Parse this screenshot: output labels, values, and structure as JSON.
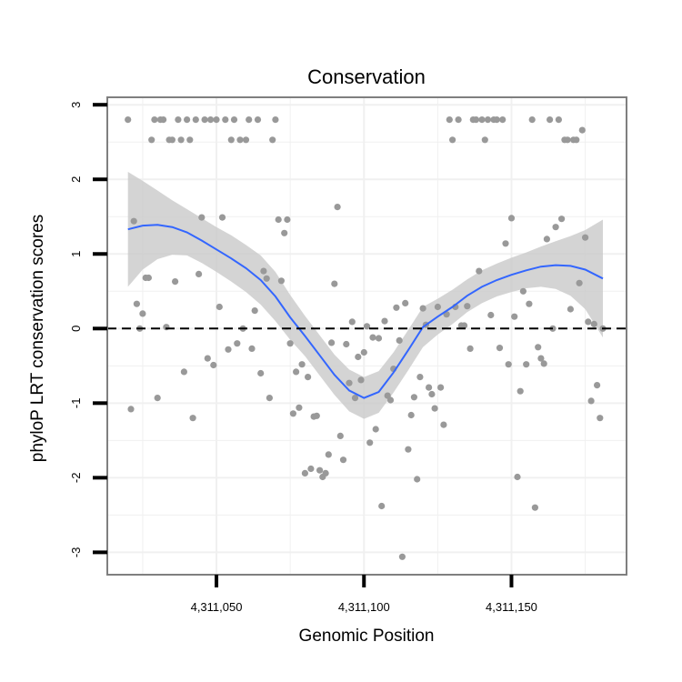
{
  "chart_data": {
    "type": "scatter",
    "title": "Conservation",
    "xlabel": "Genomic Position",
    "ylabel": "phyloP LRT conservation scores",
    "xlim": [
      4311013,
      4311189
    ],
    "ylim": [
      -3.3,
      3.1
    ],
    "x_ticks": [
      4311050,
      4311100,
      4311150
    ],
    "x_tick_labels": [
      "4,311,050",
      "4,311,100",
      "4,311,150"
    ],
    "y_ticks": [
      -3,
      -2,
      -1,
      0,
      1,
      2,
      3
    ],
    "y_tick_labels": [
      "-3",
      "-2",
      "-1",
      "0",
      "1",
      "2",
      "3"
    ],
    "reference_line": {
      "y": 0,
      "style": "dashed"
    },
    "grid": true,
    "colors": {
      "points": "#999999",
      "smooth_line": "#3366ff",
      "confidence_band": "#c9c9c9",
      "grid": "#f0f0f0",
      "panel_border": "#7f7f7f"
    },
    "series": [
      {
        "name": "phyloP scores",
        "points": [
          [
            4311020,
            2.8
          ],
          [
            4311021,
            -1.08
          ],
          [
            4311022,
            1.44
          ],
          [
            4311023,
            0.33
          ],
          [
            4311024,
            0.0
          ],
          [
            4311025,
            0.2
          ],
          [
            4311026,
            0.68
          ],
          [
            4311027,
            0.68
          ],
          [
            4311028,
            2.53
          ],
          [
            4311029,
            2.8
          ],
          [
            4311030,
            -0.93
          ],
          [
            4311031,
            2.8
          ],
          [
            4311032,
            2.8
          ],
          [
            4311033,
            0.02
          ],
          [
            4311034,
            2.53
          ],
          [
            4311035,
            2.53
          ],
          [
            4311036,
            0.63
          ],
          [
            4311037,
            2.8
          ],
          [
            4311038,
            2.53
          ],
          [
            4311039,
            -0.58
          ],
          [
            4311040,
            2.8
          ],
          [
            4311041,
            2.53
          ],
          [
            4311042,
            -1.2
          ],
          [
            4311043,
            2.8
          ],
          [
            4311044,
            0.73
          ],
          [
            4311045,
            1.49
          ],
          [
            4311046,
            2.8
          ],
          [
            4311047,
            -0.4
          ],
          [
            4311048,
            2.8
          ],
          [
            4311049,
            -0.49
          ],
          [
            4311050,
            2.8
          ],
          [
            4311051,
            0.29
          ],
          [
            4311052,
            1.49
          ],
          [
            4311053,
            2.8
          ],
          [
            4311054,
            -0.28
          ],
          [
            4311055,
            2.53
          ],
          [
            4311056,
            2.8
          ],
          [
            4311057,
            -0.2
          ],
          [
            4311058,
            2.53
          ],
          [
            4311059,
            0.0
          ],
          [
            4311060,
            2.53
          ],
          [
            4311061,
            2.8
          ],
          [
            4311062,
            -0.27
          ],
          [
            4311063,
            0.24
          ],
          [
            4311064,
            2.8
          ],
          [
            4311065,
            -0.6
          ],
          [
            4311066,
            0.77
          ],
          [
            4311067,
            0.67
          ],
          [
            4311068,
            -0.93
          ],
          [
            4311069,
            2.53
          ],
          [
            4311070,
            2.8
          ],
          [
            4311071,
            1.46
          ],
          [
            4311072,
            0.64
          ],
          [
            4311073,
            1.28
          ],
          [
            4311074,
            1.46
          ],
          [
            4311075,
            -0.2
          ],
          [
            4311076,
            -1.14
          ],
          [
            4311077,
            -0.58
          ],
          [
            4311078,
            -1.06
          ],
          [
            4311079,
            -0.48
          ],
          [
            4311080,
            -1.94
          ],
          [
            4311081,
            -0.65
          ],
          [
            4311082,
            -1.88
          ],
          [
            4311083,
            -1.18
          ],
          [
            4311084,
            -1.17
          ],
          [
            4311085,
            -1.9
          ],
          [
            4311086,
            -1.99
          ],
          [
            4311087,
            -1.94
          ],
          [
            4311088,
            -1.69
          ],
          [
            4311089,
            -0.19
          ],
          [
            4311090,
            0.6
          ],
          [
            4311091,
            1.63
          ],
          [
            4311092,
            -1.44
          ],
          [
            4311093,
            -1.76
          ],
          [
            4311094,
            -0.21
          ],
          [
            4311095,
            -0.73
          ],
          [
            4311096,
            0.09
          ],
          [
            4311097,
            -0.93
          ],
          [
            4311098,
            -0.38
          ],
          [
            4311099,
            -0.69
          ],
          [
            4311100,
            -0.32
          ],
          [
            4311101,
            0.03
          ],
          [
            4311102,
            -1.53
          ],
          [
            4311103,
            -0.12
          ],
          [
            4311104,
            -1.35
          ],
          [
            4311105,
            -0.13
          ],
          [
            4311106,
            -2.38
          ],
          [
            4311107,
            0.1
          ],
          [
            4311108,
            -0.9
          ],
          [
            4311109,
            -0.96
          ],
          [
            4311110,
            -0.54
          ],
          [
            4311111,
            0.28
          ],
          [
            4311112,
            -0.16
          ],
          [
            4311113,
            -3.06
          ],
          [
            4311114,
            0.34
          ],
          [
            4311115,
            -1.62
          ],
          [
            4311116,
            -1.16
          ],
          [
            4311117,
            -0.92
          ],
          [
            4311118,
            -2.02
          ],
          [
            4311119,
            -0.65
          ],
          [
            4311120,
            0.27
          ],
          [
            4311121,
            0.05
          ],
          [
            4311122,
            -0.79
          ],
          [
            4311123,
            -0.88
          ],
          [
            4311124,
            -1.07
          ],
          [
            4311125,
            0.29
          ],
          [
            4311126,
            -0.79
          ],
          [
            4311127,
            -1.29
          ],
          [
            4311128,
            0.19
          ],
          [
            4311129,
            2.8
          ],
          [
            4311130,
            2.53
          ],
          [
            4311131,
            0.29
          ],
          [
            4311132,
            2.8
          ],
          [
            4311133,
            0.04
          ],
          [
            4311134,
            0.04
          ],
          [
            4311135,
            0.3
          ],
          [
            4311136,
            -0.27
          ],
          [
            4311137,
            2.8
          ],
          [
            4311138,
            2.8
          ],
          [
            4311139,
            0.77
          ],
          [
            4311140,
            2.8
          ],
          [
            4311141,
            2.53
          ],
          [
            4311142,
            2.8
          ],
          [
            4311143,
            0.18
          ],
          [
            4311144,
            2.8
          ],
          [
            4311145,
            2.8
          ],
          [
            4311146,
            -0.26
          ],
          [
            4311147,
            2.8
          ],
          [
            4311148,
            1.14
          ],
          [
            4311149,
            -0.48
          ],
          [
            4311150,
            1.48
          ],
          [
            4311151,
            0.16
          ],
          [
            4311152,
            -1.99
          ],
          [
            4311153,
            -0.84
          ],
          [
            4311154,
            0.5
          ],
          [
            4311155,
            -0.48
          ],
          [
            4311156,
            0.33
          ],
          [
            4311157,
            2.8
          ],
          [
            4311158,
            -2.4
          ],
          [
            4311159,
            -0.25
          ],
          [
            4311160,
            -0.4
          ],
          [
            4311161,
            -0.47
          ],
          [
            4311162,
            1.2
          ],
          [
            4311163,
            2.8
          ],
          [
            4311164,
            0.0
          ],
          [
            4311165,
            1.36
          ],
          [
            4311166,
            2.8
          ],
          [
            4311167,
            1.47
          ],
          [
            4311168,
            2.53
          ],
          [
            4311169,
            2.53
          ],
          [
            4311170,
            0.26
          ],
          [
            4311171,
            2.53
          ],
          [
            4311172,
            2.53
          ],
          [
            4311173,
            0.61
          ],
          [
            4311174,
            2.66
          ],
          [
            4311175,
            1.22
          ],
          [
            4311176,
            0.09
          ],
          [
            4311177,
            -0.97
          ],
          [
            4311178,
            0.06
          ],
          [
            4311179,
            -0.76
          ],
          [
            4311180,
            -1.2
          ],
          [
            4311181,
            0.0
          ]
        ]
      },
      {
        "name": "smoothed fit",
        "x": [
          4311020,
          4311025,
          4311030,
          4311035,
          4311040,
          4311045,
          4311050,
          4311055,
          4311060,
          4311065,
          4311070,
          4311075,
          4311080,
          4311085,
          4311090,
          4311095,
          4311100,
          4311105,
          4311110,
          4311115,
          4311120,
          4311125,
          4311130,
          4311135,
          4311140,
          4311145,
          4311150,
          4311155,
          4311160,
          4311165,
          4311170,
          4311175,
          4311181
        ],
        "y": [
          1.33,
          1.38,
          1.39,
          1.36,
          1.29,
          1.18,
          1.06,
          0.94,
          0.81,
          0.65,
          0.43,
          0.15,
          -0.1,
          -0.36,
          -0.62,
          -0.83,
          -0.93,
          -0.85,
          -0.59,
          -0.29,
          0.02,
          0.16,
          0.29,
          0.44,
          0.56,
          0.65,
          0.72,
          0.78,
          0.83,
          0.85,
          0.84,
          0.79,
          0.67
        ],
        "upper": [
          2.1,
          1.98,
          1.85,
          1.72,
          1.6,
          1.48,
          1.36,
          1.25,
          1.12,
          0.98,
          0.76,
          0.45,
          0.17,
          -0.09,
          -0.35,
          -0.55,
          -0.65,
          -0.57,
          -0.32,
          -0.02,
          0.29,
          0.4,
          0.52,
          0.66,
          0.78,
          0.87,
          0.95,
          1.02,
          1.1,
          1.17,
          1.24,
          1.32,
          1.46
        ],
        "lower": [
          0.56,
          0.79,
          0.93,
          0.99,
          0.98,
          0.88,
          0.76,
          0.63,
          0.49,
          0.32,
          0.1,
          -0.15,
          -0.37,
          -0.63,
          -0.89,
          -1.11,
          -1.21,
          -1.13,
          -0.86,
          -0.56,
          -0.25,
          -0.08,
          0.06,
          0.22,
          0.34,
          0.43,
          0.49,
          0.54,
          0.56,
          0.53,
          0.44,
          0.26,
          -0.12
        ]
      }
    ]
  }
}
